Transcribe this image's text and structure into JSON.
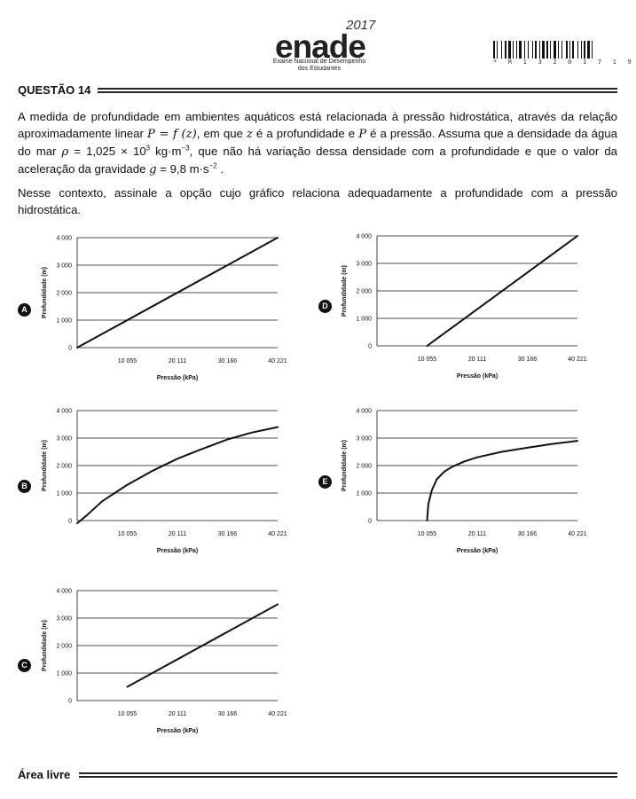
{
  "header": {
    "logo_word": "enade",
    "logo_year": "2017",
    "logo_sub_line1": "Exame Nacional de Desempenho",
    "logo_sub_line2": "dos Estudantes",
    "barcode_text": "* R 1 3 2 0 1 7 1 9 *"
  },
  "question": {
    "title": "QUESTÃO 14",
    "p1_a": "A medida de profundidade em ambientes aquáticos está relacionada à pressão hidrostática, através da relação aproximadamente linear ",
    "p1_math1": "P = f (z)",
    "p1_b": ", em que ",
    "p1_math2": "z",
    "p1_c": " é a profundidade e ",
    "p1_math3": "P",
    "p1_d": " é a pressão. Assuma que a densidade da água do mar ",
    "p1_math4": "ρ",
    "p1_e": " = 1,025 × 10",
    "p1_sup1": "3",
    "p1_f": " kg·m",
    "p1_sup2": "−3",
    "p1_g": ", que não há variação dessa densidade com a profundidade e que o valor da aceleração da gravidade ",
    "p1_math5": "g",
    "p1_h": " = 9,8 m·s",
    "p1_sup3": "−2",
    "p1_i": " .",
    "p2": "Nesse contexto, assinale a opção cujo gráfico relaciona adequadamente a profundidade com a pressão hidrostática."
  },
  "footer": {
    "area_title": "Área livre"
  },
  "chart_data": [
    {
      "option": "A",
      "type": "line",
      "xlabel": "Pressão (kPa)",
      "ylabel": "Profundidade (m)",
      "categories": [
        "10 055",
        "20 111",
        "30 166",
        "40 221"
      ],
      "ytick_labels": [
        "0",
        "1 000",
        "2 000",
        "3 000",
        "4 000"
      ],
      "ylim": [
        0,
        4000
      ],
      "xlim": [
        0,
        40221
      ],
      "series": [
        {
          "name": "A",
          "x": [
            0,
            40221
          ],
          "y": [
            0,
            4000
          ]
        }
      ]
    },
    {
      "option": "B",
      "type": "line",
      "xlabel": "Pressão (kPa)",
      "ylabel": "Profundidade (m)",
      "categories": [
        "10 055",
        "20 111",
        "30 166",
        "40 221"
      ],
      "ytick_labels": [
        "0",
        "1 000",
        "2 000",
        "3 000",
        "4 000"
      ],
      "ylim": [
        0,
        4000
      ],
      "xlim": [
        0,
        40221
      ],
      "series": [
        {
          "name": "B",
          "x": [
            0,
            2000,
            5000,
            10055,
            15000,
            20111,
            25000,
            30166,
            35000,
            40221
          ],
          "y": [
            -100,
            200,
            700,
            1300,
            1800,
            2250,
            2600,
            2950,
            3200,
            3400
          ]
        }
      ]
    },
    {
      "option": "C",
      "type": "line",
      "xlabel": "Pressão (kPa)",
      "ylabel": "Profundidade (m)",
      "categories": [
        "10 055",
        "20 111",
        "30 166",
        "40 221"
      ],
      "ytick_labels": [
        "0",
        "1 000",
        "2 000",
        "3 000",
        "4 000"
      ],
      "ylim": [
        0,
        4000
      ],
      "xlim": [
        0,
        40221
      ],
      "series": [
        {
          "name": "C",
          "x": [
            10055,
            40221
          ],
          "y": [
            500,
            3500
          ]
        }
      ]
    },
    {
      "option": "D",
      "type": "line",
      "xlabel": "Pressão (kPa)",
      "ylabel": "Profundidade (m)",
      "categories": [
        "10 055",
        "20 111",
        "30 166",
        "40 221"
      ],
      "ytick_labels": [
        "0",
        "1 000",
        "2 000",
        "3 000",
        "4 000"
      ],
      "ylim": [
        0,
        4000
      ],
      "xlim": [
        0,
        40221
      ],
      "series": [
        {
          "name": "D",
          "x": [
            10055,
            40221
          ],
          "y": [
            0,
            4000
          ]
        }
      ]
    },
    {
      "option": "E",
      "type": "line",
      "xlabel": "Pressão (kPa)",
      "ylabel": "Profundidade (m)",
      "categories": [
        "10 055",
        "20 111",
        "30 166",
        "40 221"
      ],
      "ytick_labels": [
        "0",
        "1 000",
        "2 000",
        "3 000",
        "4 000"
      ],
      "ylim": [
        0,
        4000
      ],
      "xlim": [
        0,
        40221
      ],
      "series": [
        {
          "name": "E",
          "x": [
            10055,
            10300,
            11000,
            12000,
            13500,
            15000,
            17500,
            20111,
            25000,
            30166,
            35000,
            40221
          ],
          "y": [
            0,
            600,
            1100,
            1500,
            1780,
            1950,
            2150,
            2300,
            2500,
            2650,
            2780,
            2900
          ]
        }
      ]
    }
  ]
}
